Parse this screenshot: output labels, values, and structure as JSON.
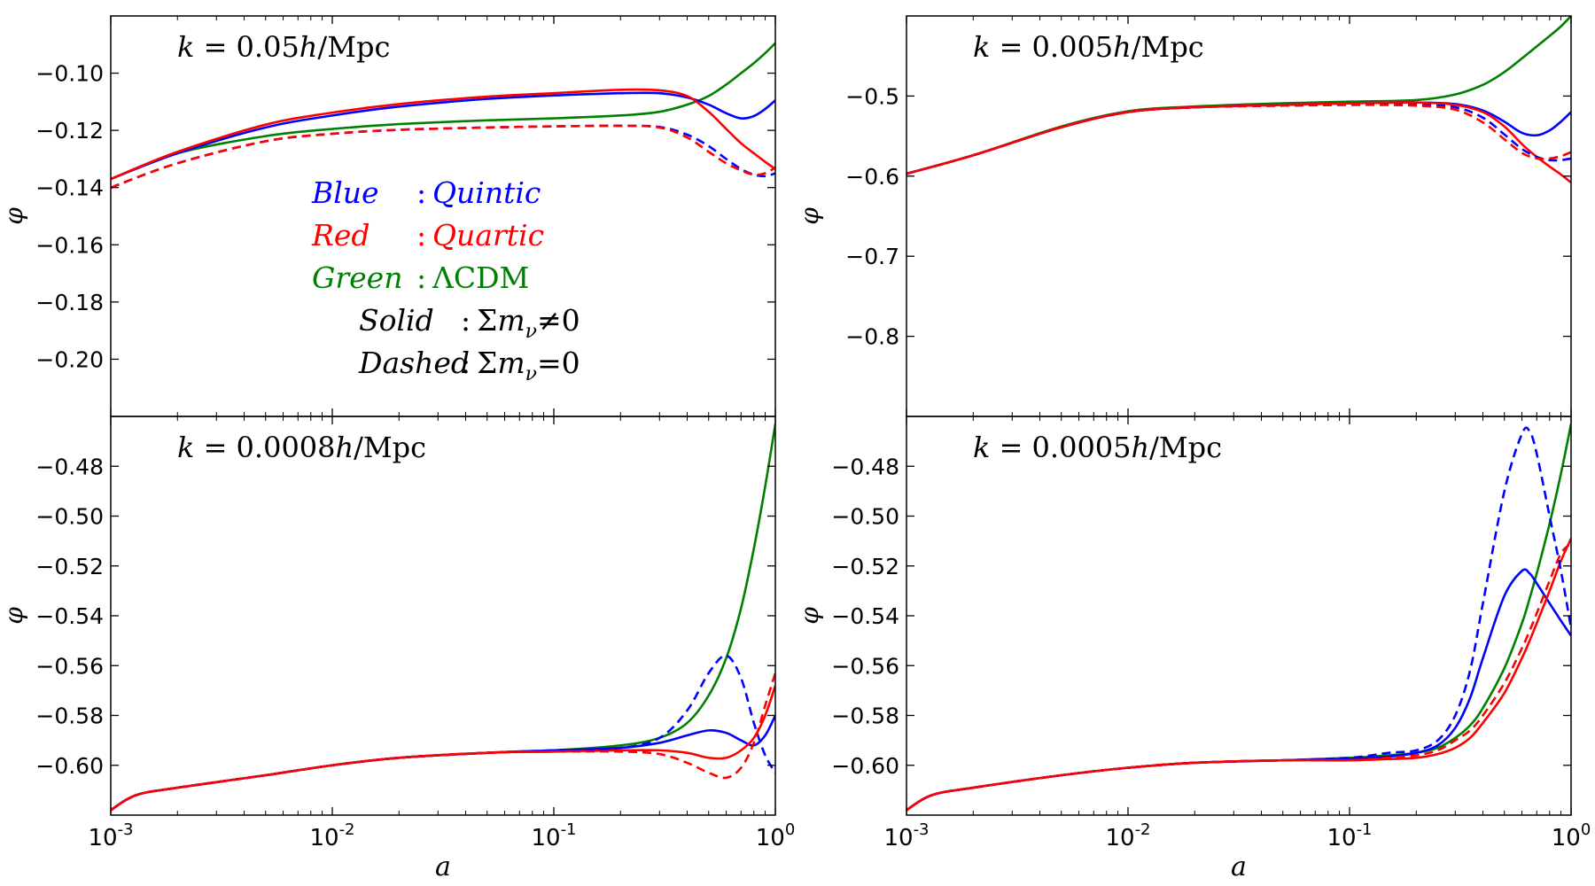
{
  "colors": {
    "blue": "#0000ff",
    "red": "#ff0000",
    "green": "#008000",
    "axis": "#000000"
  },
  "chart_data": [
    {
      "type": "line",
      "title": "k = 0.05h/Mpc",
      "xlabel": "",
      "ylabel": "φ",
      "xscale": "log",
      "xlim": [
        0.001,
        1
      ],
      "ylim": [
        -0.22,
        -0.08
      ],
      "xticks": [
        0.001,
        0.01,
        0.1,
        1
      ],
      "xtick_labels": [
        "",
        "",
        "",
        ""
      ],
      "yticks": [
        -0.1,
        -0.12,
        -0.14,
        -0.16,
        -0.18,
        -0.2
      ],
      "ytick_labels": [
        "−0.10",
        "−0.12",
        "−0.14",
        "−0.16",
        "−0.18",
        "−0.20"
      ],
      "legend": {
        "position": "center-left",
        "entries": [
          {
            "left": "Blue",
            "sep": ":",
            "right": "Quintic",
            "color": "blue"
          },
          {
            "left": "Red",
            "sep": ":",
            "right": "Quartic",
            "color": "red"
          },
          {
            "left": "Green",
            "sep": ":",
            "right": "ΛCDM",
            "color": "green"
          },
          {
            "left": "Solid",
            "sep": ":",
            "right": "Σm_ν≠0",
            "color": "axis"
          },
          {
            "left": "Dashed",
            "sep": ":",
            "right": "Σm_ν=0",
            "color": "axis"
          }
        ]
      },
      "x": [
        0.001,
        0.002,
        0.005,
        0.01,
        0.02,
        0.05,
        0.1,
        0.2,
        0.3,
        0.4,
        0.5,
        0.6,
        0.7,
        0.8,
        0.9,
        1.0
      ],
      "series": [
        {
          "color": "green",
          "style": "solid",
          "values": [
            -0.137,
            -0.128,
            -0.122,
            -0.1195,
            -0.1178,
            -0.1165,
            -0.1158,
            -0.1148,
            -0.1135,
            -0.111,
            -0.108,
            -0.104,
            -0.1,
            -0.0965,
            -0.093,
            -0.0895
          ]
        },
        {
          "color": "blue",
          "style": "solid",
          "values": [
            -0.137,
            -0.128,
            -0.119,
            -0.1148,
            -0.1117,
            -0.109,
            -0.1078,
            -0.107,
            -0.107,
            -0.1085,
            -0.111,
            -0.114,
            -0.1158,
            -0.115,
            -0.1125,
            -0.1095
          ]
        },
        {
          "color": "red",
          "style": "solid",
          "values": [
            -0.137,
            -0.1275,
            -0.118,
            -0.1138,
            -0.1108,
            -0.1082,
            -0.107,
            -0.1058,
            -0.106,
            -0.108,
            -0.1135,
            -0.1195,
            -0.1245,
            -0.128,
            -0.131,
            -0.1335
          ]
        },
        {
          "color": "blue",
          "style": "dashed",
          "values": [
            -0.14,
            -0.1315,
            -0.1238,
            -0.1212,
            -0.1198,
            -0.119,
            -0.1186,
            -0.1184,
            -0.1188,
            -0.1215,
            -0.1255,
            -0.13,
            -0.1335,
            -0.1355,
            -0.136,
            -0.135
          ]
        },
        {
          "color": "red",
          "style": "dashed",
          "values": [
            -0.14,
            -0.1315,
            -0.1238,
            -0.1212,
            -0.1198,
            -0.119,
            -0.1186,
            -0.1184,
            -0.119,
            -0.1225,
            -0.1275,
            -0.1315,
            -0.134,
            -0.1355,
            -0.135,
            -0.133
          ]
        }
      ]
    },
    {
      "type": "line",
      "title": "k = 0.005h/Mpc",
      "xlabel": "",
      "ylabel": "φ",
      "xscale": "log",
      "xlim": [
        0.001,
        1
      ],
      "ylim": [
        -0.9,
        -0.4
      ],
      "xticks": [
        0.001,
        0.01,
        0.1,
        1
      ],
      "xtick_labels": [
        "",
        "",
        "",
        ""
      ],
      "yticks": [
        -0.5,
        -0.6,
        -0.7,
        -0.8
      ],
      "ytick_labels": [
        "−0.5",
        "−0.6",
        "−0.7",
        "−0.8"
      ],
      "x": [
        0.001,
        0.002,
        0.005,
        0.01,
        0.02,
        0.05,
        0.1,
        0.2,
        0.3,
        0.4,
        0.5,
        0.6,
        0.7,
        0.8,
        0.9,
        1.0
      ],
      "series": [
        {
          "color": "green",
          "style": "solid",
          "values": [
            -0.597,
            -0.574,
            -0.538,
            -0.519,
            -0.513,
            -0.509,
            -0.507,
            -0.505,
            -0.498,
            -0.486,
            -0.47,
            -0.453,
            -0.438,
            -0.425,
            -0.413,
            -0.4
          ]
        },
        {
          "color": "blue",
          "style": "solid",
          "values": [
            -0.597,
            -0.574,
            -0.539,
            -0.52,
            -0.514,
            -0.511,
            -0.509,
            -0.508,
            -0.51,
            -0.518,
            -0.532,
            -0.546,
            -0.549,
            -0.543,
            -0.532,
            -0.52
          ]
        },
        {
          "color": "red",
          "style": "solid",
          "values": [
            -0.597,
            -0.574,
            -0.539,
            -0.52,
            -0.514,
            -0.511,
            -0.509,
            -0.508,
            -0.511,
            -0.52,
            -0.538,
            -0.56,
            -0.576,
            -0.588,
            -0.598,
            -0.608
          ]
        },
        {
          "color": "blue",
          "style": "dashed",
          "values": [
            -0.597,
            -0.574,
            -0.539,
            -0.52,
            -0.514,
            -0.512,
            -0.511,
            -0.511,
            -0.514,
            -0.527,
            -0.548,
            -0.566,
            -0.576,
            -0.58,
            -0.58,
            -0.578
          ]
        },
        {
          "color": "red",
          "style": "dashed",
          "values": [
            -0.597,
            -0.574,
            -0.539,
            -0.52,
            -0.514,
            -0.512,
            -0.511,
            -0.512,
            -0.517,
            -0.533,
            -0.554,
            -0.571,
            -0.578,
            -0.578,
            -0.575,
            -0.57
          ]
        }
      ]
    },
    {
      "type": "line",
      "title": "k = 0.0008h/Mpc",
      "xlabel": "a",
      "ylabel": "φ",
      "xscale": "log",
      "xlim": [
        0.001,
        1
      ],
      "ylim": [
        -0.62,
        -0.46
      ],
      "xticks": [
        0.001,
        0.01,
        0.1,
        1
      ],
      "xtick_labels": [
        "10^-3",
        "10^-2",
        "10^-1",
        "10^0"
      ],
      "yticks": [
        -0.48,
        -0.5,
        -0.52,
        -0.54,
        -0.56,
        -0.58,
        -0.6
      ],
      "ytick_labels": [
        "−0.48",
        "−0.50",
        "−0.52",
        "−0.54",
        "−0.56",
        "−0.58",
        "−0.60"
      ],
      "x": [
        0.001,
        0.0013,
        0.002,
        0.005,
        0.01,
        0.02,
        0.05,
        0.1,
        0.2,
        0.3,
        0.4,
        0.5,
        0.6,
        0.7,
        0.8,
        0.9,
        1.0
      ],
      "series": [
        {
          "color": "green",
          "style": "solid",
          "values": [
            -0.618,
            -0.612,
            -0.609,
            -0.604,
            -0.6,
            -0.597,
            -0.595,
            -0.594,
            -0.592,
            -0.589,
            -0.583,
            -0.572,
            -0.557,
            -0.537,
            -0.513,
            -0.488,
            -0.463
          ]
        },
        {
          "color": "blue",
          "style": "solid",
          "values": [
            -0.618,
            -0.612,
            -0.609,
            -0.604,
            -0.6,
            -0.597,
            -0.595,
            -0.594,
            -0.593,
            -0.591,
            -0.588,
            -0.586,
            -0.587,
            -0.59,
            -0.592,
            -0.588,
            -0.58
          ]
        },
        {
          "color": "red",
          "style": "solid",
          "values": [
            -0.618,
            -0.612,
            -0.609,
            -0.604,
            -0.6,
            -0.597,
            -0.595,
            -0.5945,
            -0.594,
            -0.594,
            -0.595,
            -0.597,
            -0.597,
            -0.594,
            -0.589,
            -0.58,
            -0.568
          ]
        },
        {
          "color": "blue",
          "style": "dashed",
          "values": [
            -0.618,
            -0.612,
            -0.609,
            -0.604,
            -0.6,
            -0.597,
            -0.595,
            -0.594,
            -0.593,
            -0.589,
            -0.578,
            -0.563,
            -0.556,
            -0.565,
            -0.583,
            -0.596,
            -0.603
          ]
        },
        {
          "color": "red",
          "style": "dashed",
          "values": [
            -0.618,
            -0.612,
            -0.609,
            -0.604,
            -0.6,
            -0.597,
            -0.595,
            -0.5945,
            -0.5945,
            -0.5955,
            -0.599,
            -0.603,
            -0.605,
            -0.601,
            -0.591,
            -0.576,
            -0.563
          ]
        }
      ]
    },
    {
      "type": "line",
      "title": "k = 0.0005h/Mpc",
      "xlabel": "a",
      "ylabel": "φ",
      "xscale": "log",
      "xlim": [
        0.001,
        1
      ],
      "ylim": [
        -0.62,
        -0.46
      ],
      "xticks": [
        0.001,
        0.01,
        0.1,
        1
      ],
      "xtick_labels": [
        "10^-3",
        "10^-2",
        "10^-1",
        "10^0"
      ],
      "yticks": [
        -0.48,
        -0.5,
        -0.52,
        -0.54,
        -0.56,
        -0.58,
        -0.6
      ],
      "ytick_labels": [
        "−0.48",
        "−0.50",
        "−0.52",
        "−0.54",
        "−0.56",
        "−0.58",
        "−0.60"
      ],
      "x": [
        0.001,
        0.0013,
        0.002,
        0.005,
        0.01,
        0.02,
        0.05,
        0.1,
        0.15,
        0.2,
        0.25,
        0.3,
        0.35,
        0.4,
        0.5,
        0.6,
        0.65,
        0.7,
        0.8,
        0.9,
        1.0
      ],
      "series": [
        {
          "color": "green",
          "style": "solid",
          "values": [
            -0.618,
            -0.612,
            -0.609,
            -0.604,
            -0.601,
            -0.599,
            -0.598,
            -0.597,
            -0.596,
            -0.595,
            -0.593,
            -0.589,
            -0.584,
            -0.577,
            -0.561,
            -0.543,
            -0.533,
            -0.523,
            -0.503,
            -0.483,
            -0.463
          ]
        },
        {
          "color": "blue",
          "style": "solid",
          "values": [
            -0.618,
            -0.612,
            -0.609,
            -0.604,
            -0.601,
            -0.599,
            -0.598,
            -0.5975,
            -0.5965,
            -0.595,
            -0.592,
            -0.585,
            -0.573,
            -0.557,
            -0.532,
            -0.522,
            -0.523,
            -0.527,
            -0.535,
            -0.542,
            -0.548
          ]
        },
        {
          "color": "red",
          "style": "solid",
          "values": [
            -0.618,
            -0.612,
            -0.609,
            -0.604,
            -0.601,
            -0.599,
            -0.598,
            -0.598,
            -0.5975,
            -0.597,
            -0.5955,
            -0.593,
            -0.589,
            -0.583,
            -0.571,
            -0.557,
            -0.55,
            -0.543,
            -0.53,
            -0.518,
            -0.509
          ]
        },
        {
          "color": "blue",
          "style": "dashed",
          "values": [
            -0.618,
            -0.612,
            -0.609,
            -0.604,
            -0.601,
            -0.599,
            -0.598,
            -0.597,
            -0.595,
            -0.594,
            -0.59,
            -0.58,
            -0.562,
            -0.535,
            -0.49,
            -0.467,
            -0.466,
            -0.475,
            -0.5,
            -0.522,
            -0.545
          ]
        },
        {
          "color": "red",
          "style": "dashed",
          "values": [
            -0.618,
            -0.612,
            -0.609,
            -0.604,
            -0.601,
            -0.599,
            -0.598,
            -0.598,
            -0.597,
            -0.596,
            -0.594,
            -0.59,
            -0.586,
            -0.58,
            -0.567,
            -0.553,
            -0.546,
            -0.539,
            -0.526,
            -0.515,
            -0.511
          ]
        }
      ]
    }
  ]
}
